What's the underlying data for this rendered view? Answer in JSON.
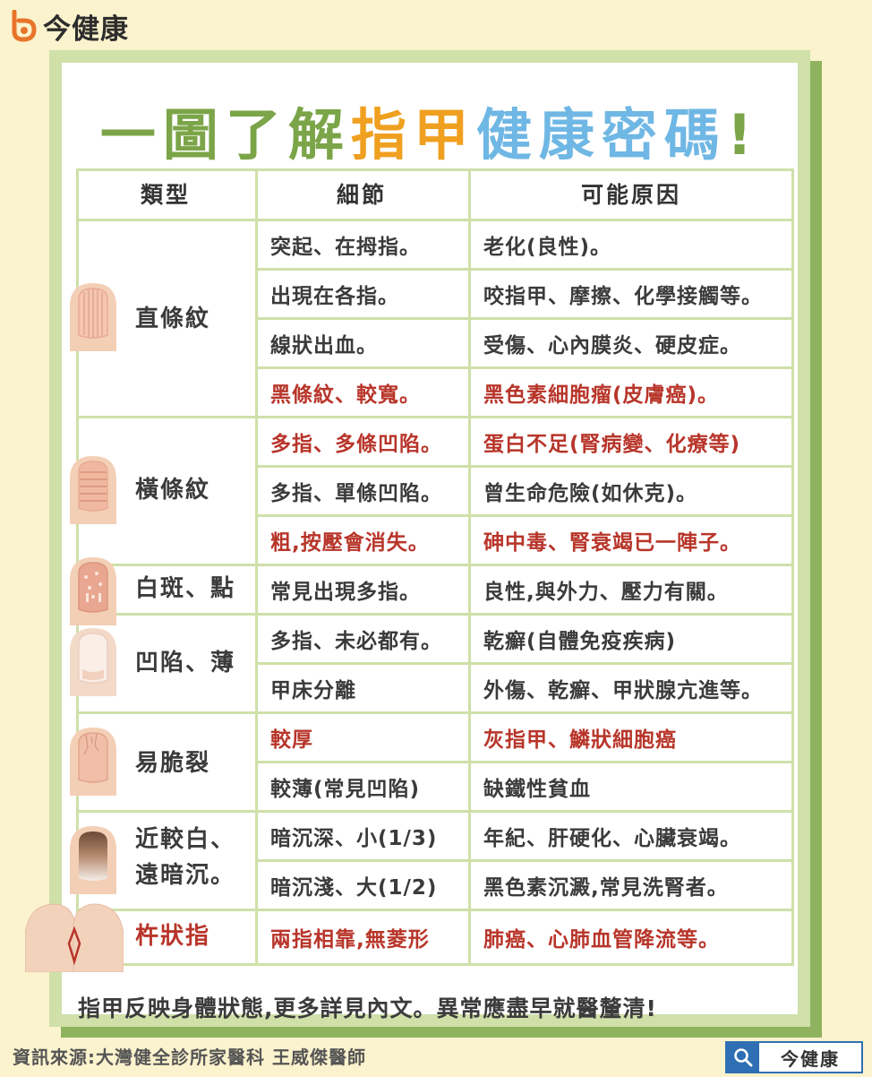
{
  "brand": {
    "name": "今健康",
    "icon": "brand-b-icon"
  },
  "title": {
    "part1": "一圖了解",
    "part2": "指甲",
    "part3": "健康密碼",
    "part4": "!"
  },
  "table": {
    "headers": [
      "類型",
      "細節",
      "可能原因"
    ],
    "types": [
      {
        "label": "直條紋",
        "icon": "vertical-ridges-nail-icon"
      },
      {
        "label": "橫條紋",
        "icon": "horizontal-ridges-nail-icon"
      },
      {
        "label": "白斑、點",
        "icon": "white-spots-nail-icon"
      },
      {
        "label": "凹陷、薄",
        "icon": "pitted-thin-nail-icon"
      },
      {
        "label": "易脆裂",
        "icon": "brittle-nail-icon"
      },
      {
        "label1": "近較白、",
        "label2": "遠暗沉。",
        "icon": "half-and-half-nail-icon"
      },
      {
        "label": "杵狀指",
        "icon": "clubbing-fingers-icon"
      }
    ],
    "rows": [
      {
        "detail": "突起、在拇指。",
        "cause": "老化(良性)。",
        "highlight": false
      },
      {
        "detail": "出現在各指。",
        "cause": "咬指甲、摩擦、化學接觸等。",
        "highlight": false
      },
      {
        "detail": "線狀出血。",
        "cause": "受傷、心內膜炎、硬皮症。",
        "highlight": false
      },
      {
        "detail": "黑條紋、較寬。",
        "cause": "黑色素細胞瘤(皮膚癌)。",
        "highlight": true
      },
      {
        "detail": "多指、多條凹陷。",
        "cause": "蛋白不足(腎病變、化療等)",
        "highlight": true
      },
      {
        "detail": "多指、單條凹陷。",
        "cause": "曾生命危險(如休克)。",
        "highlight": false
      },
      {
        "detail": "粗,按壓會消失。",
        "cause": "砷中毒、腎衰竭已一陣子。",
        "highlight": true
      },
      {
        "detail": "常見出現多指。",
        "cause": "良性,與外力、壓力有關。",
        "highlight": false
      },
      {
        "detail": "多指、未必都有。",
        "cause": "乾癬(自體免疫疾病)",
        "highlight": false
      },
      {
        "detail": "甲床分離",
        "cause": "外傷、乾癬、甲狀腺亢進等。",
        "highlight": false
      },
      {
        "detail": "較厚",
        "cause": "灰指甲、鱗狀細胞癌",
        "highlight": true
      },
      {
        "detail": "較薄(常見凹陷)",
        "cause": "缺鐵性貧血",
        "highlight": false
      },
      {
        "detail": "暗沉深、小(1/3)",
        "cause": "年紀、肝硬化、心臟衰竭。",
        "highlight": false
      },
      {
        "detail": "暗沉淺、大(1/2)",
        "cause": "黑色素沉澱,常見洗腎者。",
        "highlight": false
      },
      {
        "detail": "兩指相靠,無菱形",
        "cause": "肺癌、心肺血管降流等。",
        "highlight": true
      }
    ]
  },
  "footer_note": "指甲反映身體狀態,更多詳見內文。異常應盡早就醫釐清!",
  "source": "資訊來源:大灣健全診所家醫科 王威傑醫師",
  "search": {
    "label": "今健康",
    "icon": "search-icon"
  },
  "colors": {
    "background": "#fbf3cd",
    "card_border": "#cfe0a9",
    "card_shadow": "#8fb25f",
    "title_green": "#7ba548",
    "title_orange": "#f0a020",
    "title_blue": "#6fb7e4",
    "highlight_red": "#b8352a"
  }
}
